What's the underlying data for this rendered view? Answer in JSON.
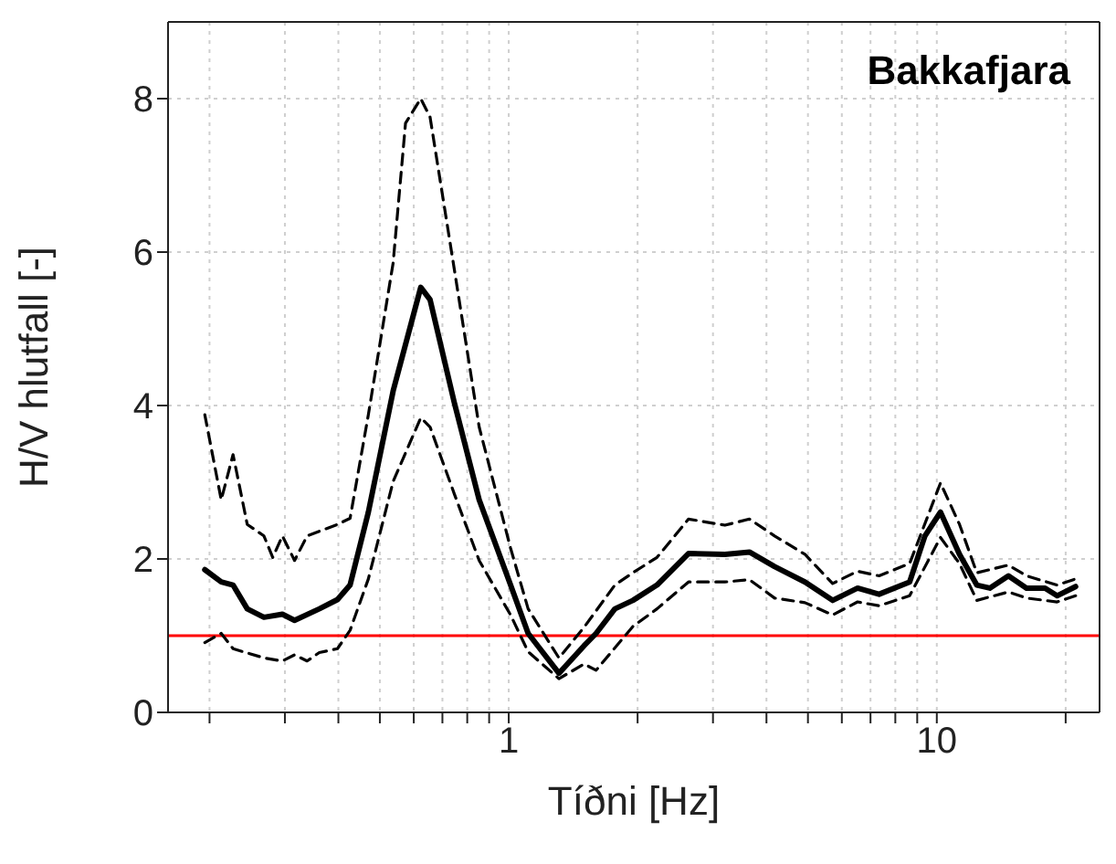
{
  "chart_data": {
    "type": "line",
    "xlabel": "Tíðni [Hz]",
    "ylabel": "H/V hlutfall [-]",
    "annotations": [
      "Bakkafjara"
    ],
    "log": "x",
    "grid": true,
    "xlim": [
      0.16,
      24
    ],
    "ylim": [
      0,
      9
    ],
    "yticks": [
      0,
      2,
      4,
      6,
      8
    ],
    "xticks": [
      {
        "value": 0.2,
        "label": null
      },
      {
        "value": 0.3,
        "label": null
      },
      {
        "value": 0.4,
        "label": null
      },
      {
        "value": 0.5,
        "label": null
      },
      {
        "value": 0.6,
        "label": null
      },
      {
        "value": 0.7,
        "label": null
      },
      {
        "value": 0.8,
        "label": null
      },
      {
        "value": 0.9,
        "label": null
      },
      1,
      {
        "value": 2,
        "label": null
      },
      {
        "value": 3,
        "label": null
      },
      {
        "value": 4,
        "label": null
      },
      {
        "value": 5,
        "label": null
      },
      {
        "value": 6,
        "label": null
      },
      {
        "value": 7,
        "label": null
      },
      {
        "value": 8,
        "label": null
      },
      {
        "value": 9,
        "label": null
      },
      10,
      {
        "value": 20,
        "label": null
      }
    ],
    "ref_lines": [
      {
        "axis": "y",
        "value": 1,
        "color": "#ff0000",
        "line_style": "solid"
      }
    ],
    "series": [
      {
        "color": "#000000",
        "line_style": "solid",
        "x": [
          0.195,
          0.213,
          0.227,
          0.245,
          0.268,
          0.296,
          0.316,
          0.361,
          0.398,
          0.426,
          0.47,
          0.537,
          0.623,
          0.655,
          0.746,
          0.853,
          1.01,
          1.11,
          1.31,
          1.5,
          1.6,
          1.77,
          1.95,
          2.22,
          2.63,
          3.2,
          3.65,
          4.18,
          4.92,
          5.71,
          6.53,
          7.33,
          8.64,
          9.38,
          10.2,
          11.3,
          12.4,
          13.3,
          14.7,
          16.2,
          17.9,
          19.1,
          21.1
        ],
        "values": [
          1.86,
          1.7,
          1.66,
          1.35,
          1.24,
          1.28,
          1.2,
          1.35,
          1.47,
          1.66,
          2.61,
          4.19,
          5.54,
          5.38,
          4.04,
          2.77,
          1.66,
          1.03,
          0.51,
          0.87,
          1.03,
          1.35,
          1.46,
          1.66,
          2.07,
          2.06,
          2.09,
          1.9,
          1.7,
          1.46,
          1.62,
          1.54,
          1.7,
          2.3,
          2.61,
          2.06,
          1.66,
          1.62,
          1.78,
          1.62,
          1.62,
          1.52,
          1.64
        ]
      },
      {
        "color": "#000000",
        "line_style": "dashed",
        "x": [
          0.195,
          0.213,
          0.227,
          0.245,
          0.268,
          0.281,
          0.296,
          0.316,
          0.338,
          0.398,
          0.426,
          0.47,
          0.537,
          0.574,
          0.623,
          0.655,
          0.746,
          0.853,
          1.01,
          1.11,
          1.31,
          1.5,
          1.77,
          1.95,
          2.22,
          2.63,
          3.2,
          3.65,
          4.18,
          4.92,
          5.71,
          6.53,
          7.33,
          8.64,
          10.2,
          11.3,
          12.4,
          14.7,
          16.2,
          19.1,
          21.1
        ],
        "values": [
          3.88,
          2.77,
          3.36,
          2.45,
          2.3,
          2.02,
          2.3,
          1.98,
          2.3,
          2.45,
          2.53,
          3.88,
          5.86,
          7.68,
          8.0,
          7.76,
          5.78,
          3.72,
          2.14,
          1.35,
          0.71,
          1.11,
          1.66,
          1.82,
          2.02,
          2.52,
          2.44,
          2.52,
          2.3,
          2.06,
          1.68,
          1.84,
          1.78,
          1.94,
          2.99,
          2.45,
          1.82,
          1.92,
          1.78,
          1.66,
          1.74
        ]
      },
      {
        "color": "#000000",
        "line_style": "dashed",
        "x": [
          0.195,
          0.213,
          0.227,
          0.268,
          0.296,
          0.316,
          0.338,
          0.361,
          0.398,
          0.426,
          0.47,
          0.537,
          0.623,
          0.655,
          0.746,
          0.853,
          1.01,
          1.11,
          1.31,
          1.5,
          1.6,
          1.95,
          2.22,
          2.63,
          3.2,
          3.65,
          4.18,
          4.92,
          5.71,
          6.53,
          7.33,
          8.64,
          10.2,
          11.3,
          12.4,
          14.7,
          16.2,
          19.1,
          21.1
        ],
        "values": [
          0.91,
          1.03,
          0.83,
          0.71,
          0.67,
          0.75,
          0.67,
          0.78,
          0.83,
          1.07,
          1.74,
          3.01,
          3.84,
          3.72,
          2.85,
          1.98,
          1.27,
          0.79,
          0.44,
          0.63,
          0.55,
          1.12,
          1.35,
          1.7,
          1.7,
          1.73,
          1.49,
          1.43,
          1.27,
          1.44,
          1.39,
          1.52,
          2.28,
          1.94,
          1.46,
          1.57,
          1.49,
          1.44,
          1.52
        ]
      }
    ]
  }
}
